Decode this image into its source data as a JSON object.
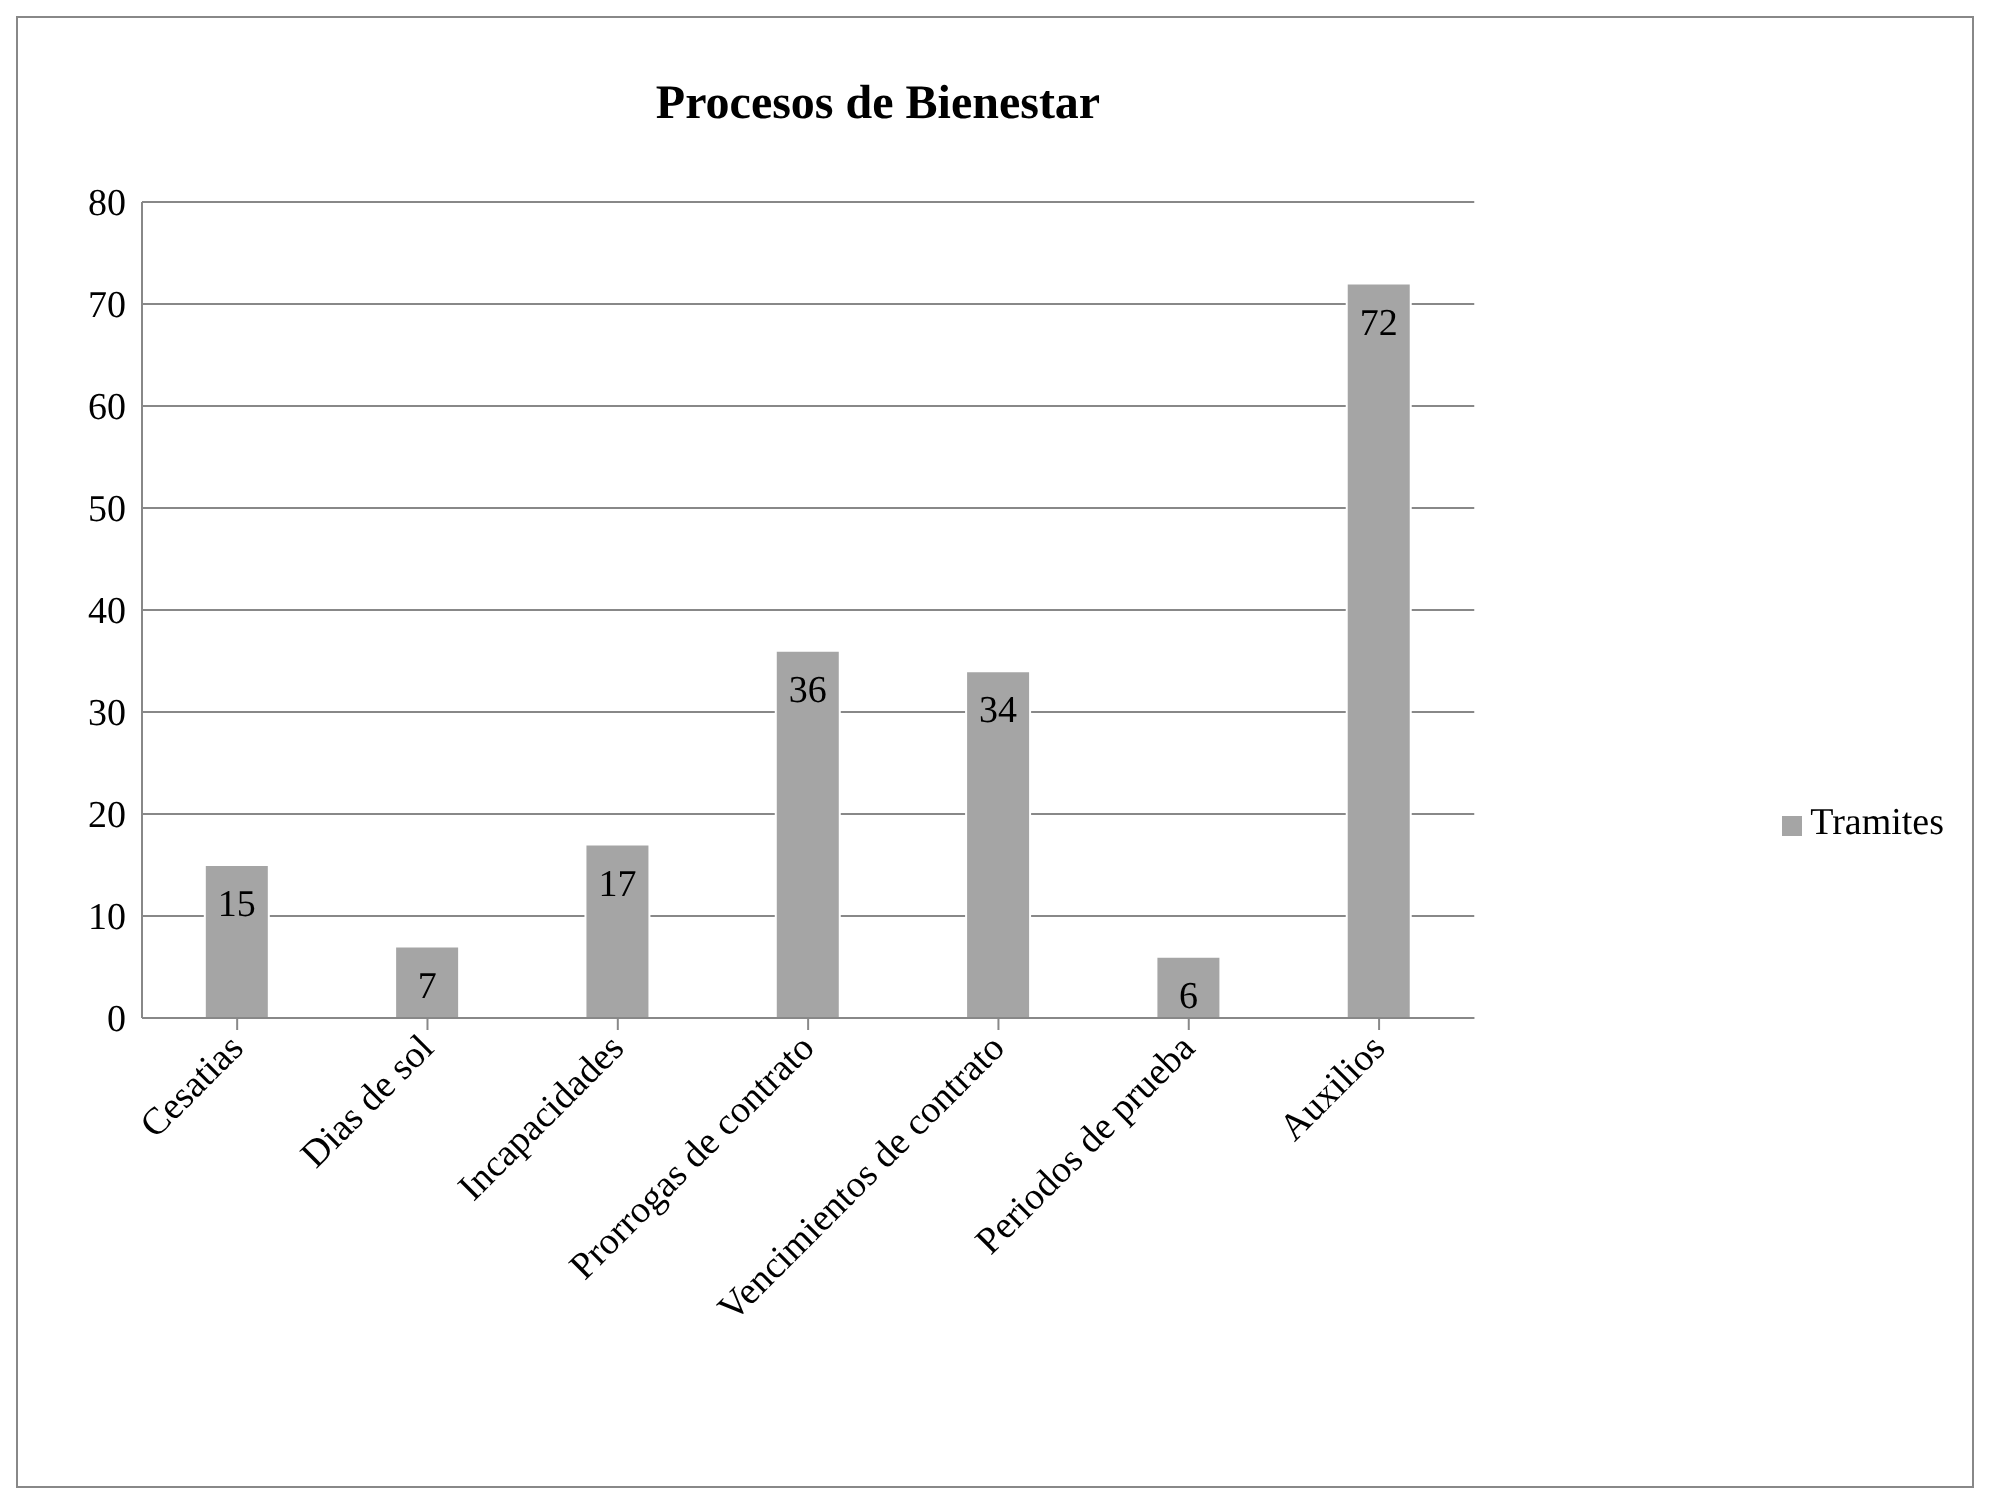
{
  "chart_data": {
    "type": "bar",
    "title": "Procesos de Bienestar",
    "categories": [
      "Cesatias",
      "Dias de sol",
      "Incapacidades",
      "Prorrogas de contrato",
      "Vencimientos de contrato",
      "Periodos de prueba",
      "Auxilios"
    ],
    "series": [
      {
        "name": "Tramites",
        "color": "#a5a5a5",
        "values": [
          15,
          7,
          17,
          36,
          34,
          6,
          72
        ]
      }
    ],
    "ylim": [
      0,
      80
    ],
    "yticks": [
      0,
      10,
      20,
      30,
      40,
      50,
      60,
      70,
      80
    ],
    "grid": "y",
    "legend": "right",
    "data_labels": true
  }
}
